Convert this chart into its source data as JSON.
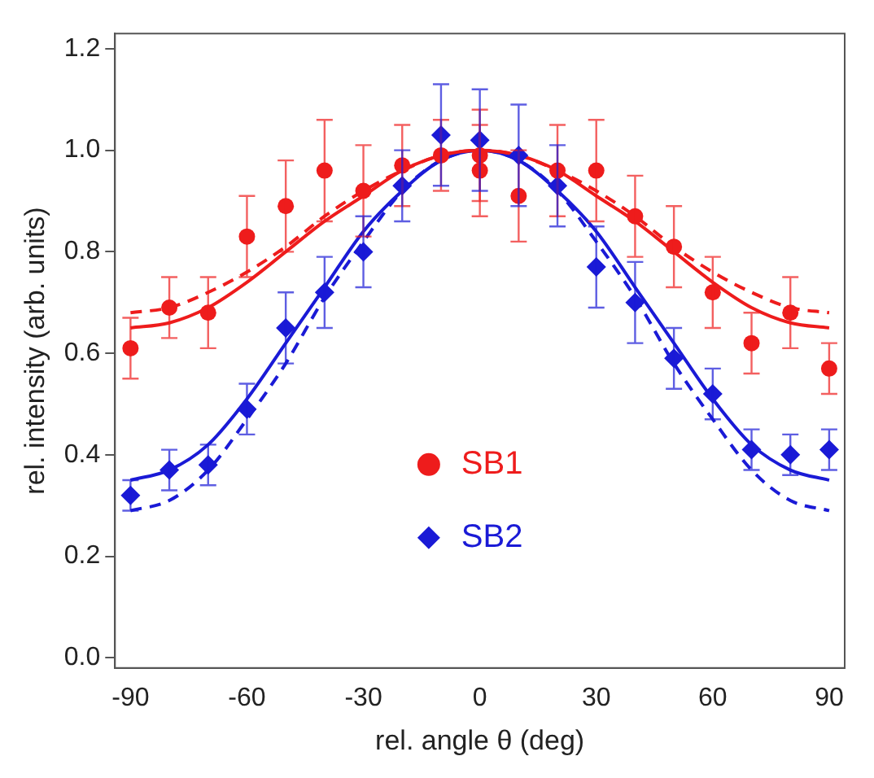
{
  "chart_data": {
    "type": "scatter",
    "xlabel": "rel. angle θ (deg)",
    "ylabel": "rel. intensity (arb. units)",
    "xlim": [
      -94,
      94
    ],
    "xticks": [
      -90,
      -60,
      -30,
      0,
      30,
      60,
      90
    ],
    "ylim": [
      -0.02,
      1.23
    ],
    "yticks": [
      {
        "value": 0,
        "label": "0.0"
      },
      {
        "value": 0.2,
        "label": "0.2"
      },
      {
        "value": 0.4,
        "label": "0.4"
      },
      {
        "value": 0.6,
        "label": "0.6"
      },
      {
        "value": 0.8,
        "label": "0.8"
      },
      {
        "value": 1,
        "label": "1.0"
      },
      {
        "value": 1.2,
        "label": "1.2"
      }
    ],
    "grid": false,
    "legend": "bottom",
    "series": [
      {
        "name": "SB1",
        "marker": "circle",
        "color": "#ee1c1c",
        "x": [
          -90,
          -80,
          -70,
          -60,
          -50,
          -40,
          -30,
          -20,
          -10,
          0,
          0,
          10,
          20,
          30,
          40,
          50,
          60,
          70,
          80,
          90
        ],
        "values": [
          0.61,
          0.69,
          0.68,
          0.83,
          0.89,
          0.96,
          0.92,
          0.97,
          0.99,
          0.99,
          0.96,
          0.91,
          0.96,
          0.96,
          0.87,
          0.81,
          0.72,
          0.62,
          0.68,
          0.57
        ],
        "errors": [
          0.06,
          0.06,
          0.07,
          0.08,
          0.09,
          0.1,
          0.09,
          0.08,
          0.07,
          0.09,
          0.09,
          0.09,
          0.09,
          0.1,
          0.08,
          0.08,
          0.07,
          0.06,
          0.07,
          0.05
        ]
      },
      {
        "name": "SB2",
        "marker": "diamond",
        "color": "#1a1ad6",
        "x": [
          -90,
          -80,
          -70,
          -60,
          -50,
          -40,
          -30,
          -20,
          -10,
          0,
          10,
          20,
          30,
          40,
          50,
          60,
          70,
          80,
          90
        ],
        "values": [
          0.32,
          0.37,
          0.38,
          0.49,
          0.65,
          0.72,
          0.8,
          0.93,
          1.03,
          1.02,
          0.99,
          0.93,
          0.77,
          0.7,
          0.59,
          0.52,
          0.41,
          0.4,
          0.41
        ],
        "errors": [
          0.03,
          0.04,
          0.04,
          0.05,
          0.07,
          0.07,
          0.07,
          0.07,
          0.1,
          0.1,
          0.1,
          0.08,
          0.08,
          0.08,
          0.06,
          0.05,
          0.04,
          0.04,
          0.04
        ]
      },
      {
        "type": "line",
        "marker": "none",
        "line_style": "solid",
        "color": "#ee1c1c",
        "x": [
          -90,
          -80,
          -70,
          -60,
          -50,
          -40,
          -30,
          -20,
          -10,
          0,
          10,
          20,
          30,
          40,
          50,
          60,
          70,
          80,
          90
        ],
        "values": [
          0.65,
          0.66,
          0.69,
          0.74,
          0.8,
          0.86,
          0.91,
          0.96,
          0.99,
          1,
          0.99,
          0.96,
          0.91,
          0.86,
          0.8,
          0.74,
          0.69,
          0.66,
          0.65
        ]
      },
      {
        "type": "line",
        "marker": "none",
        "line_style": "dashed",
        "color": "#ee1c1c",
        "x": [
          -90,
          -80,
          -70,
          -60,
          -50,
          -40,
          -30,
          -20,
          -10,
          0,
          10,
          20,
          30,
          40,
          50,
          60,
          70,
          80,
          90
        ],
        "values": [
          0.68,
          0.69,
          0.72,
          0.76,
          0.81,
          0.87,
          0.92,
          0.96,
          0.99,
          1,
          0.99,
          0.96,
          0.92,
          0.87,
          0.81,
          0.76,
          0.72,
          0.69,
          0.68
        ]
      },
      {
        "type": "line",
        "marker": "none",
        "line_style": "solid",
        "color": "#1a1ad6",
        "x": [
          -90,
          -80,
          -70,
          -60,
          -50,
          -40,
          -30,
          -20,
          -10,
          0,
          10,
          20,
          30,
          40,
          50,
          60,
          70,
          80,
          90
        ],
        "values": [
          0.35,
          0.37,
          0.42,
          0.51,
          0.62,
          0.73,
          0.84,
          0.92,
          0.98,
          1,
          0.98,
          0.92,
          0.84,
          0.73,
          0.62,
          0.51,
          0.42,
          0.37,
          0.35
        ]
      },
      {
        "type": "line",
        "marker": "none",
        "line_style": "dashed",
        "color": "#1a1ad6",
        "x": [
          -90,
          -80,
          -70,
          -60,
          -50,
          -40,
          -30,
          -20,
          -10,
          0,
          10,
          20,
          30,
          40,
          50,
          60,
          70,
          80,
          90
        ],
        "values": [
          0.29,
          0.31,
          0.37,
          0.47,
          0.58,
          0.71,
          0.82,
          0.92,
          0.98,
          1,
          0.98,
          0.92,
          0.82,
          0.71,
          0.58,
          0.47,
          0.37,
          0.31,
          0.29
        ]
      }
    ]
  }
}
